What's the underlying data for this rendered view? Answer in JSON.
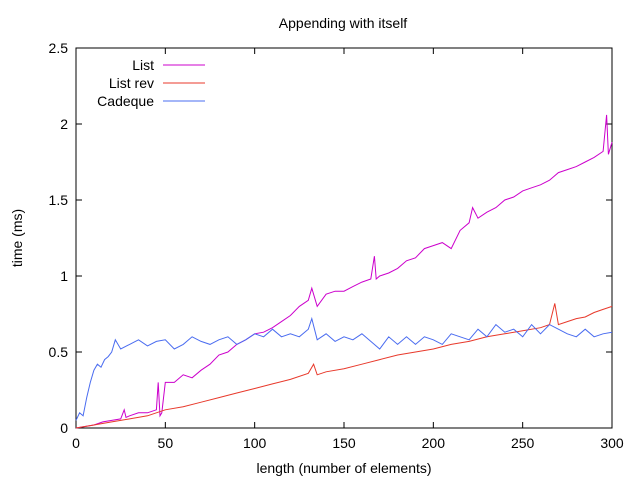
{
  "chart_data": {
    "type": "line",
    "title": "Appending with itself",
    "xlabel": "length (number of elements)",
    "ylabel": "time (ms)",
    "xlim": [
      0,
      300
    ],
    "ylim": [
      0,
      2.5
    ],
    "xticks": [
      "0",
      "50",
      "100",
      "150",
      "200",
      "250",
      "300"
    ],
    "yticks": [
      "0",
      "0.5",
      "1",
      "1.5",
      "2",
      "2.5"
    ],
    "grid": false,
    "legend_position": "top-left",
    "series": [
      {
        "name": "List",
        "color": "#cc00cc",
        "x": [
          0,
          5,
          10,
          15,
          20,
          25,
          27,
          28,
          30,
          35,
          40,
          45,
          46,
          47,
          48,
          50,
          55,
          60,
          65,
          70,
          75,
          80,
          85,
          90,
          95,
          100,
          105,
          110,
          115,
          120,
          125,
          130,
          132,
          135,
          140,
          145,
          150,
          155,
          160,
          165,
          167,
          168,
          170,
          175,
          180,
          185,
          190,
          195,
          200,
          205,
          210,
          215,
          220,
          222,
          225,
          230,
          235,
          240,
          245,
          250,
          255,
          260,
          265,
          270,
          275,
          280,
          285,
          290,
          295,
          297,
          298,
          300
        ],
        "y": [
          0.0,
          0.01,
          0.02,
          0.04,
          0.05,
          0.06,
          0.12,
          0.07,
          0.08,
          0.1,
          0.1,
          0.12,
          0.3,
          0.08,
          0.1,
          0.3,
          0.3,
          0.35,
          0.33,
          0.38,
          0.42,
          0.48,
          0.5,
          0.55,
          0.58,
          0.62,
          0.63,
          0.66,
          0.7,
          0.74,
          0.8,
          0.84,
          0.92,
          0.8,
          0.88,
          0.9,
          0.9,
          0.93,
          0.96,
          0.98,
          1.13,
          0.98,
          1.0,
          1.02,
          1.05,
          1.1,
          1.12,
          1.18,
          1.2,
          1.22,
          1.18,
          1.3,
          1.35,
          1.45,
          1.38,
          1.42,
          1.45,
          1.5,
          1.52,
          1.56,
          1.58,
          1.6,
          1.63,
          1.68,
          1.7,
          1.72,
          1.75,
          1.78,
          1.82,
          2.06,
          1.8,
          1.88
        ]
      },
      {
        "name": "List rev",
        "color": "#e8392b",
        "x": [
          0,
          10,
          20,
          25,
          30,
          40,
          50,
          60,
          70,
          80,
          90,
          100,
          110,
          120,
          130,
          133,
          135,
          140,
          150,
          160,
          170,
          180,
          190,
          200,
          210,
          220,
          230,
          240,
          250,
          260,
          265,
          268,
          270,
          275,
          280,
          285,
          290,
          295,
          300
        ],
        "y": [
          0.0,
          0.02,
          0.04,
          0.05,
          0.06,
          0.08,
          0.12,
          0.14,
          0.17,
          0.2,
          0.23,
          0.26,
          0.29,
          0.32,
          0.36,
          0.42,
          0.35,
          0.37,
          0.39,
          0.42,
          0.45,
          0.48,
          0.5,
          0.52,
          0.55,
          0.57,
          0.6,
          0.62,
          0.64,
          0.66,
          0.68,
          0.82,
          0.68,
          0.7,
          0.72,
          0.73,
          0.76,
          0.78,
          0.8
        ]
      },
      {
        "name": "Cadeque",
        "color": "#4a6cf0",
        "x": [
          0,
          2,
          4,
          6,
          8,
          10,
          12,
          14,
          16,
          18,
          20,
          22,
          25,
          30,
          35,
          40,
          45,
          50,
          55,
          60,
          65,
          70,
          75,
          80,
          85,
          90,
          95,
          100,
          105,
          110,
          115,
          120,
          125,
          130,
          132,
          135,
          140,
          145,
          150,
          155,
          160,
          165,
          170,
          175,
          180,
          185,
          190,
          195,
          200,
          205,
          210,
          215,
          220,
          225,
          230,
          235,
          240,
          245,
          250,
          255,
          260,
          265,
          270,
          275,
          280,
          285,
          290,
          295,
          300
        ],
        "y": [
          0.05,
          0.1,
          0.08,
          0.2,
          0.3,
          0.38,
          0.42,
          0.4,
          0.45,
          0.47,
          0.5,
          0.58,
          0.52,
          0.55,
          0.58,
          0.54,
          0.57,
          0.58,
          0.52,
          0.55,
          0.6,
          0.57,
          0.55,
          0.58,
          0.6,
          0.55,
          0.58,
          0.62,
          0.6,
          0.65,
          0.6,
          0.62,
          0.6,
          0.65,
          0.72,
          0.58,
          0.62,
          0.57,
          0.6,
          0.58,
          0.62,
          0.57,
          0.52,
          0.6,
          0.55,
          0.6,
          0.55,
          0.6,
          0.58,
          0.55,
          0.62,
          0.6,
          0.58,
          0.65,
          0.6,
          0.68,
          0.63,
          0.65,
          0.6,
          0.68,
          0.62,
          0.68,
          0.65,
          0.62,
          0.6,
          0.65,
          0.6,
          0.62,
          0.63
        ]
      }
    ]
  }
}
